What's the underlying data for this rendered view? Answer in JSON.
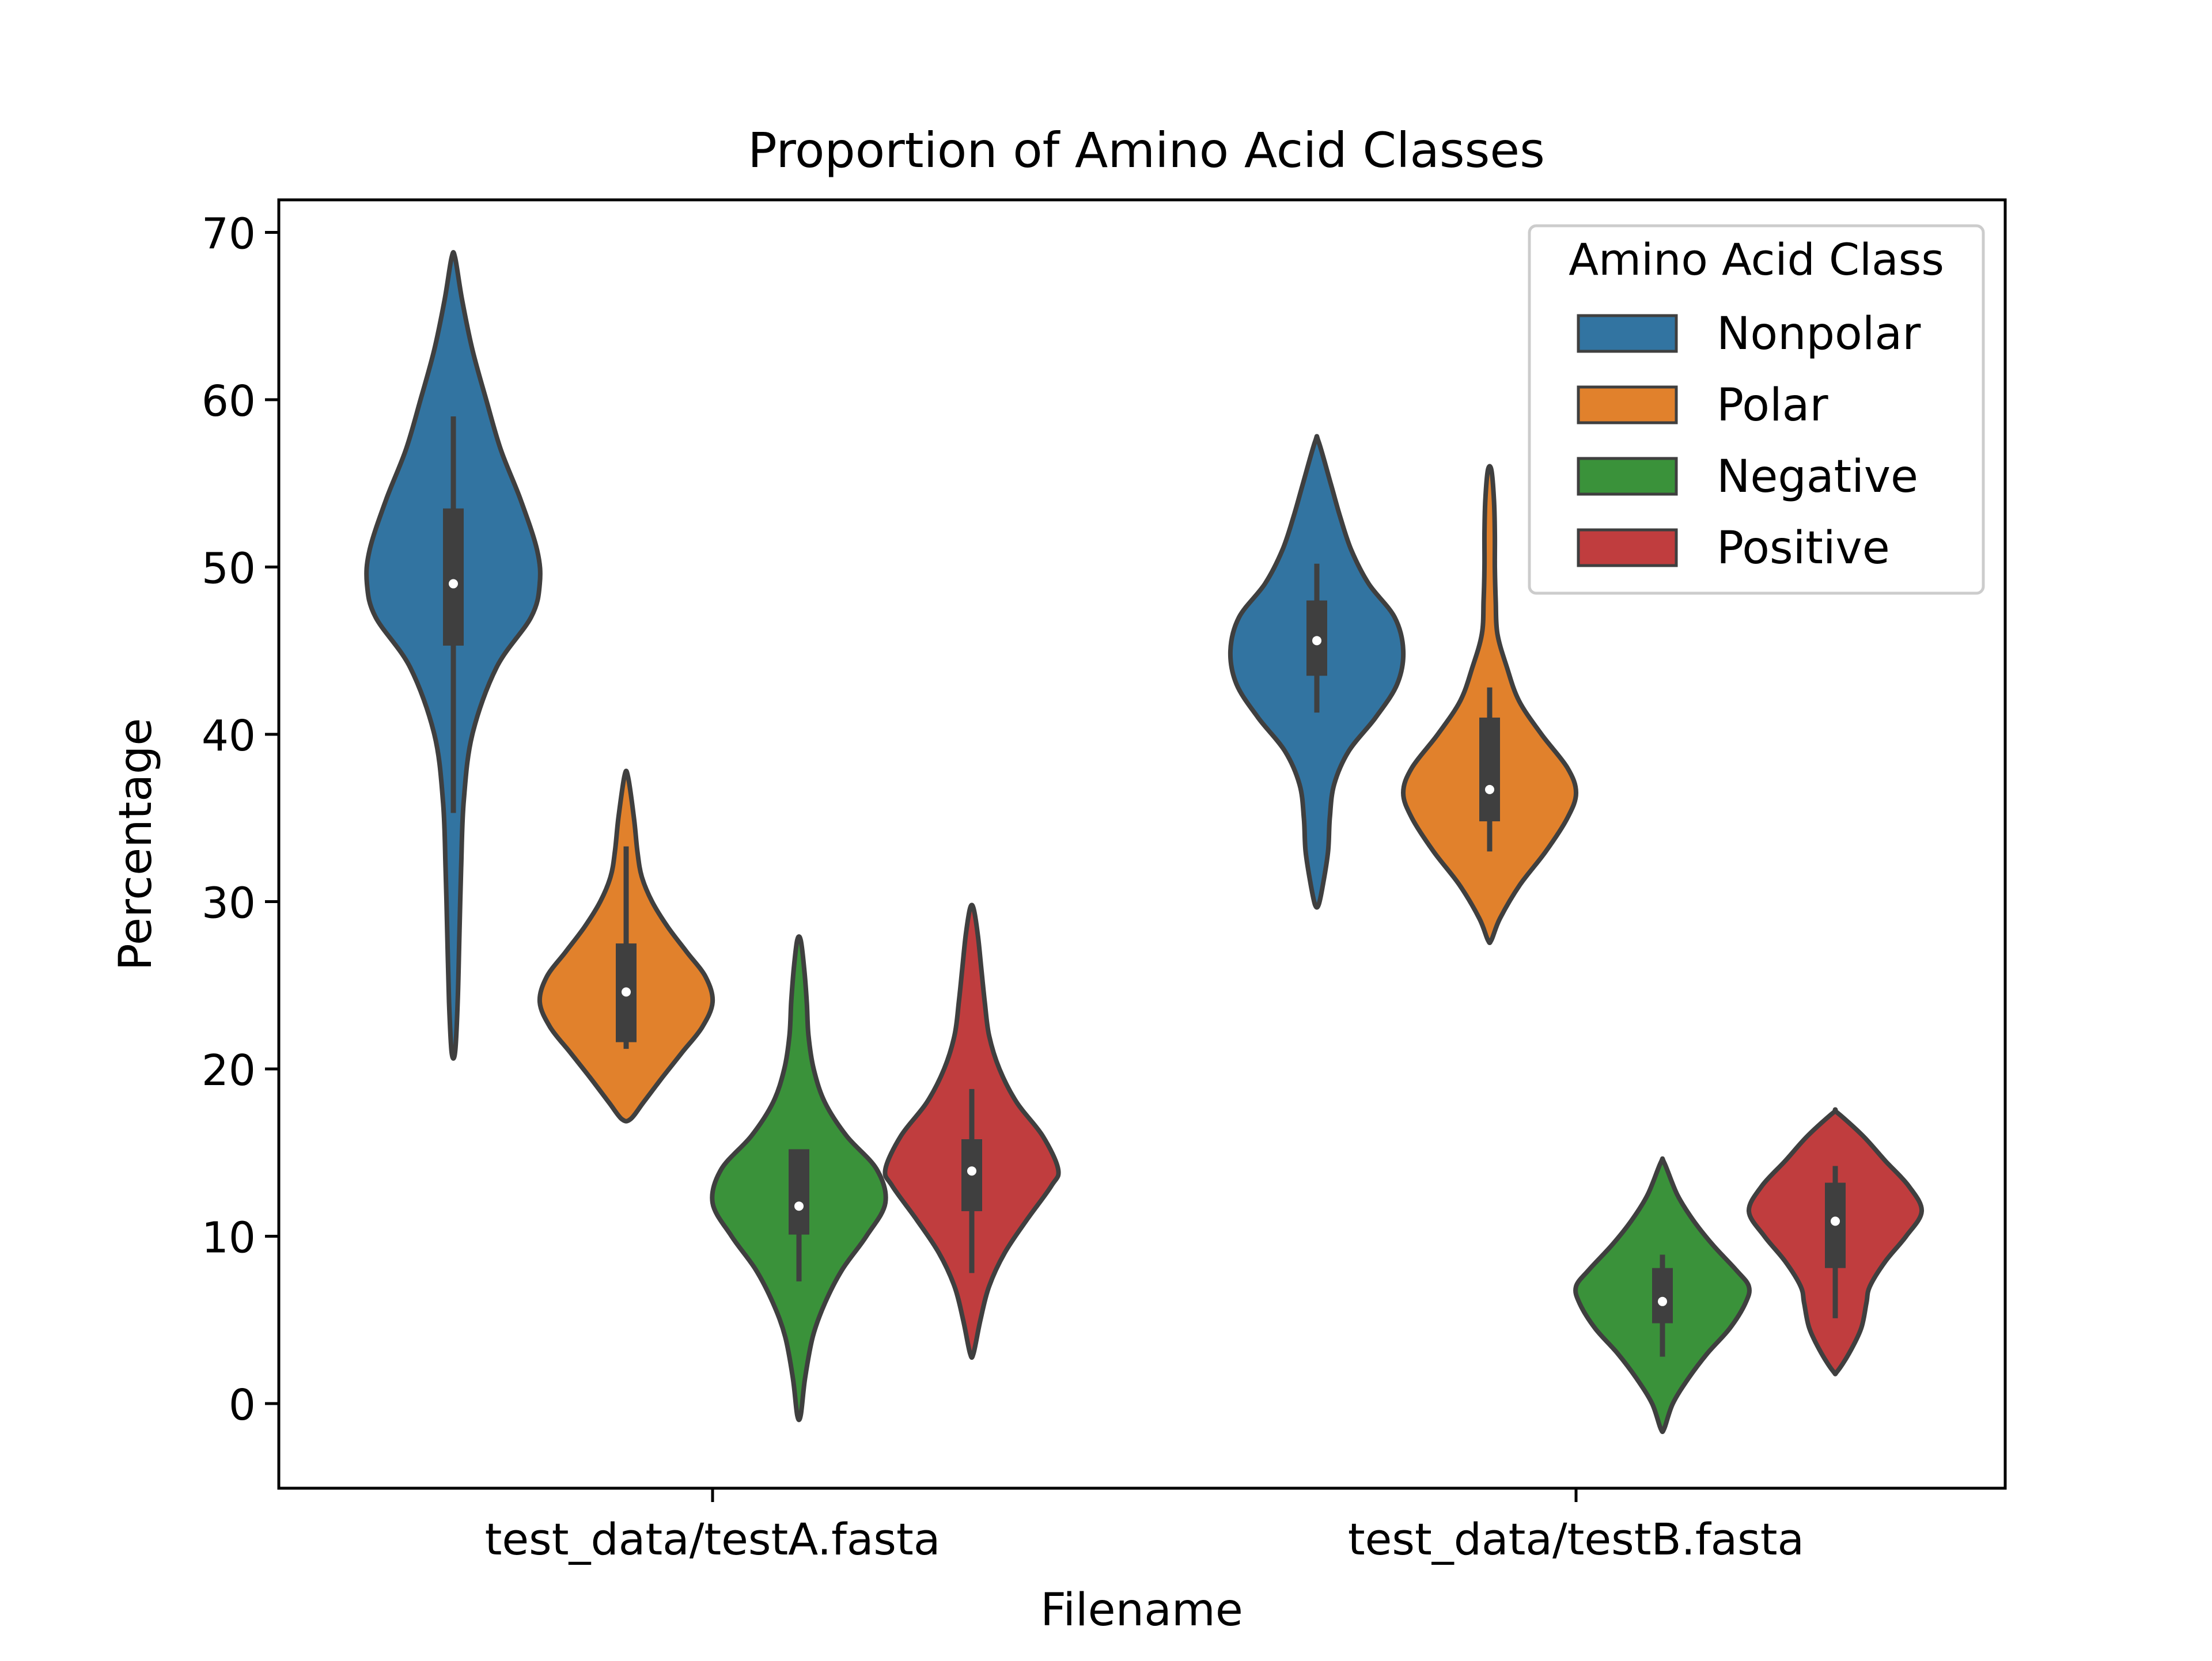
{
  "chart_data": {
    "type": "violin",
    "title": "Proportion of Amino Acid Classes",
    "xlabel": "Filename",
    "ylabel": "Percentage",
    "ylim": [
      -5,
      72
    ],
    "yticks": [
      0,
      10,
      20,
      30,
      40,
      50,
      60,
      70
    ],
    "categories": [
      "test_data/testA.fasta",
      "test_data/testB.fasta"
    ],
    "legend": {
      "title": "Amino Acid Class",
      "position": "top-right",
      "entries": [
        "Nonpolar",
        "Polar",
        "Negative",
        "Positive"
      ]
    },
    "series": [
      {
        "name": "Nonpolar",
        "color": "#3274a1",
        "violins": [
          {
            "min": 21,
            "max": 68.5,
            "q1": 45.3,
            "median": 49,
            "q3": 53.5,
            "whisker_low": 35.3,
            "whisker_high": 59,
            "profile": [
              [
                21,
                0.02
              ],
              [
                24,
                0.05
              ],
              [
                28,
                0.07
              ],
              [
                32,
                0.09
              ],
              [
                36,
                0.12
              ],
              [
                40,
                0.22
              ],
              [
                44,
                0.5
              ],
              [
                47,
                0.9
              ],
              [
                49,
                1.0
              ],
              [
                51,
                0.97
              ],
              [
                54,
                0.78
              ],
              [
                57,
                0.55
              ],
              [
                60,
                0.38
              ],
              [
                63,
                0.22
              ],
              [
                66,
                0.1
              ],
              [
                68.5,
                0.02
              ]
            ]
          },
          {
            "min": 29.8,
            "max": 57.5,
            "q1": 43.5,
            "median": 45.6,
            "q3": 48,
            "whisker_low": 41.3,
            "whisker_high": 50.2,
            "profile": [
              [
                29.8,
                0.02
              ],
              [
                31,
                0.07
              ],
              [
                33,
                0.13
              ],
              [
                35,
                0.15
              ],
              [
                37,
                0.2
              ],
              [
                39,
                0.37
              ],
              [
                41,
                0.68
              ],
              [
                43,
                0.93
              ],
              [
                45,
                1.0
              ],
              [
                47,
                0.9
              ],
              [
                49,
                0.6
              ],
              [
                51,
                0.4
              ],
              [
                53,
                0.27
              ],
              [
                55,
                0.16
              ],
              [
                57.5,
                0.02
              ]
            ]
          }
        ]
      },
      {
        "name": "Polar",
        "color": "#e1812c",
        "violins": [
          {
            "min": 17,
            "max": 37.5,
            "q1": 21.6,
            "median": 24.6,
            "q3": 27.5,
            "whisker_low": 21.2,
            "whisker_high": 33.3,
            "profile": [
              [
                17,
                0.05
              ],
              [
                18,
                0.2
              ],
              [
                19.5,
                0.42
              ],
              [
                21,
                0.65
              ],
              [
                22.5,
                0.88
              ],
              [
                24,
                1.0
              ],
              [
                25.5,
                0.92
              ],
              [
                27,
                0.7
              ],
              [
                28.5,
                0.48
              ],
              [
                30,
                0.3
              ],
              [
                31.5,
                0.18
              ],
              [
                33,
                0.13
              ],
              [
                35,
                0.09
              ],
              [
                37.5,
                0.02
              ]
            ]
          },
          {
            "min": 27.7,
            "max": 55.8,
            "q1": 34.8,
            "median": 36.7,
            "q3": 41,
            "whisker_low": 33,
            "whisker_high": 42.8,
            "profile": [
              [
                27.7,
                0.02
              ],
              [
                29,
                0.12
              ],
              [
                31,
                0.35
              ],
              [
                33,
                0.65
              ],
              [
                35,
                0.9
              ],
              [
                36.5,
                1.0
              ],
              [
                38,
                0.9
              ],
              [
                40,
                0.6
              ],
              [
                42,
                0.34
              ],
              [
                44,
                0.2
              ],
              [
                46,
                0.09
              ],
              [
                48,
                0.07
              ],
              [
                50,
                0.06
              ],
              [
                52,
                0.06
              ],
              [
                54,
                0.05
              ],
              [
                55.8,
                0.02
              ]
            ]
          }
        ]
      },
      {
        "name": "Negative",
        "color": "#3a923a",
        "violins": [
          {
            "min": -0.7,
            "max": 27.7,
            "q1": 10.1,
            "median": 11.8,
            "q3": 15.2,
            "whisker_low": 7.3,
            "whisker_high": 15.2,
            "profile": [
              [
                -0.7,
                0.02
              ],
              [
                1.5,
                0.07
              ],
              [
                4,
                0.16
              ],
              [
                6,
                0.3
              ],
              [
                8,
                0.5
              ],
              [
                10,
                0.78
              ],
              [
                12,
                1.0
              ],
              [
                14,
                0.9
              ],
              [
                16,
                0.55
              ],
              [
                18,
                0.3
              ],
              [
                20,
                0.17
              ],
              [
                22,
                0.11
              ],
              [
                24,
                0.09
              ],
              [
                26,
                0.06
              ],
              [
                27.7,
                0.02
              ]
            ]
          },
          {
            "min": -1.5,
            "max": 14.4,
            "q1": 4.8,
            "median": 6.1,
            "q3": 8.1,
            "whisker_low": 2.8,
            "whisker_high": 8.9,
            "profile": [
              [
                -1.5,
                0.02
              ],
              [
                0,
                0.12
              ],
              [
                1.5,
                0.3
              ],
              [
                3,
                0.52
              ],
              [
                4.5,
                0.78
              ],
              [
                6,
                0.96
              ],
              [
                7,
                1.0
              ],
              [
                8,
                0.85
              ],
              [
                9.5,
                0.58
              ],
              [
                11,
                0.35
              ],
              [
                12.5,
                0.17
              ],
              [
                14.4,
                0.02
              ]
            ]
          }
        ]
      },
      {
        "name": "Positive",
        "color": "#c03d3e",
        "violins": [
          {
            "min": 3,
            "max": 29.6,
            "q1": 11.5,
            "median": 13.9,
            "q3": 15.8,
            "whisker_low": 7.8,
            "whisker_high": 18.8,
            "profile": [
              [
                3,
                0.02
              ],
              [
                5,
                0.1
              ],
              [
                7,
                0.2
              ],
              [
                9,
                0.38
              ],
              [
                11,
                0.64
              ],
              [
                13,
                0.92
              ],
              [
                14,
                1.0
              ],
              [
                16,
                0.82
              ],
              [
                18,
                0.52
              ],
              [
                20,
                0.32
              ],
              [
                22,
                0.2
              ],
              [
                24,
                0.15
              ],
              [
                26,
                0.11
              ],
              [
                28,
                0.07
              ],
              [
                29.6,
                0.02
              ]
            ]
          },
          {
            "min": 1.9,
            "max": 17.4,
            "q1": 8.1,
            "median": 10.9,
            "q3": 13.2,
            "whisker_low": 5.1,
            "whisker_high": 14.2,
            "profile": [
              [
                1.9,
                0.02
              ],
              [
                3,
                0.16
              ],
              [
                4.5,
                0.3
              ],
              [
                6,
                0.36
              ],
              [
                7,
                0.4
              ],
              [
                8.5,
                0.58
              ],
              [
                10,
                0.82
              ],
              [
                11.5,
                1.0
              ],
              [
                13,
                0.85
              ],
              [
                14.5,
                0.58
              ],
              [
                16,
                0.32
              ],
              [
                17.4,
                0.02
              ]
            ]
          }
        ]
      }
    ],
    "grid": false,
    "colors": {
      "outline": "#3f3f3f",
      "box": "#3f3f3f",
      "median": "#ffffff"
    }
  }
}
